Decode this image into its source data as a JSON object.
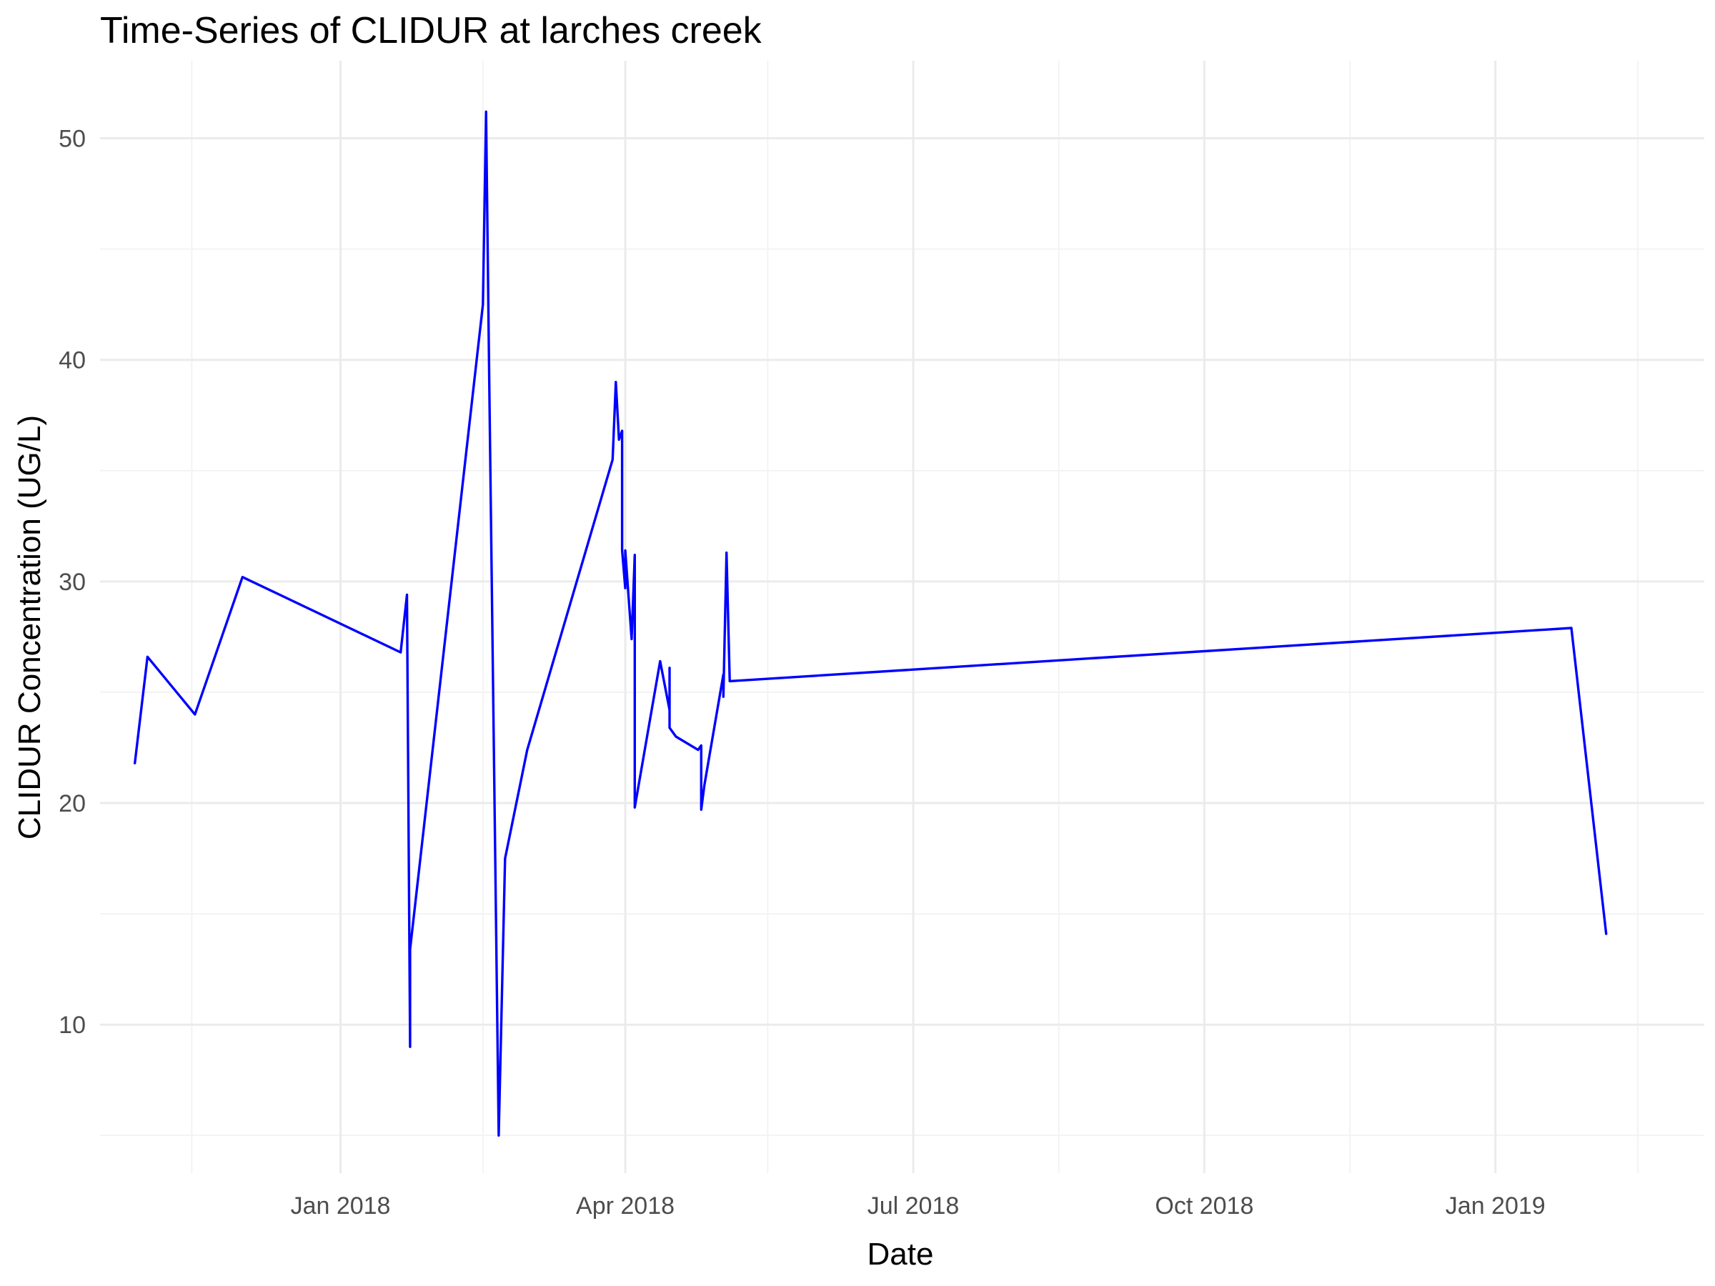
{
  "chart_data": {
    "type": "line",
    "title": "Time-Series of CLIDUR at larches creek",
    "xlabel": "Date",
    "ylabel": "CLIDUR Concentration (UG/L)",
    "x_type": "date",
    "xlim": [
      "2017-10-17",
      "2019-03-08"
    ],
    "ylim": [
      3.3,
      53.5
    ],
    "grid": true,
    "legend": "none",
    "x_ticks": [
      {
        "date": "2018-01-01",
        "label": "Jan 2018"
      },
      {
        "date": "2018-04-01",
        "label": "Apr 2018"
      },
      {
        "date": "2018-07-01",
        "label": "Jul 2018"
      },
      {
        "date": "2018-10-01",
        "label": "Oct 2018"
      },
      {
        "date": "2019-01-01",
        "label": "Jan 2019"
      }
    ],
    "x_minor_ticks": [
      "2017-11-15",
      "2018-02-15",
      "2018-05-16",
      "2018-08-16",
      "2018-11-16",
      "2019-02-15"
    ],
    "y_ticks": [
      10,
      20,
      30,
      40,
      50
    ],
    "y_minor_ticks": [
      5,
      15,
      25,
      35,
      45
    ],
    "series": [
      {
        "color": "#0000ff",
        "points": [
          {
            "x": "2017-10-28",
            "y": 21.8
          },
          {
            "x": "2017-11-01",
            "y": 26.6
          },
          {
            "x": "2017-11-16",
            "y": 24.0
          },
          {
            "x": "2017-12-01",
            "y": 30.2
          },
          {
            "x": "2018-01-20",
            "y": 26.8
          },
          {
            "x": "2018-01-22",
            "y": 29.4
          },
          {
            "x": "2018-01-23",
            "y": 9.0
          },
          {
            "x": "2018-01-23",
            "y": 13.4
          },
          {
            "x": "2018-02-15",
            "y": 42.5
          },
          {
            "x": "2018-02-16",
            "y": 51.2
          },
          {
            "x": "2018-02-17",
            "y": 39.2
          },
          {
            "x": "2018-02-20",
            "y": 5.0
          },
          {
            "x": "2018-02-22",
            "y": 17.5
          },
          {
            "x": "2018-03-01",
            "y": 22.4
          },
          {
            "x": "2018-03-28",
            "y": 35.5
          },
          {
            "x": "2018-03-29",
            "y": 39.0
          },
          {
            "x": "2018-03-30",
            "y": 36.4
          },
          {
            "x": "2018-03-31",
            "y": 36.8
          },
          {
            "x": "2018-03-31",
            "y": 31.4
          },
          {
            "x": "2018-04-01",
            "y": 29.7
          },
          {
            "x": "2018-04-01",
            "y": 31.4
          },
          {
            "x": "2018-04-03",
            "y": 27.4
          },
          {
            "x": "2018-04-04",
            "y": 31.2
          },
          {
            "x": "2018-04-04",
            "y": 19.8
          },
          {
            "x": "2018-04-12",
            "y": 26.4
          },
          {
            "x": "2018-04-15",
            "y": 24.2
          },
          {
            "x": "2018-04-15",
            "y": 26.1
          },
          {
            "x": "2018-04-15",
            "y": 23.4
          },
          {
            "x": "2018-04-17",
            "y": 23.0
          },
          {
            "x": "2018-04-24",
            "y": 22.4
          },
          {
            "x": "2018-04-25",
            "y": 22.6
          },
          {
            "x": "2018-04-25",
            "y": 19.7
          },
          {
            "x": "2018-04-26",
            "y": 20.8
          },
          {
            "x": "2018-05-02",
            "y": 25.8
          },
          {
            "x": "2018-05-02",
            "y": 24.8
          },
          {
            "x": "2018-05-03",
            "y": 31.3
          },
          {
            "x": "2018-05-04",
            "y": 25.5
          },
          {
            "x": "2019-01-25",
            "y": 27.9
          },
          {
            "x": "2019-02-05",
            "y": 14.1
          }
        ]
      }
    ]
  }
}
